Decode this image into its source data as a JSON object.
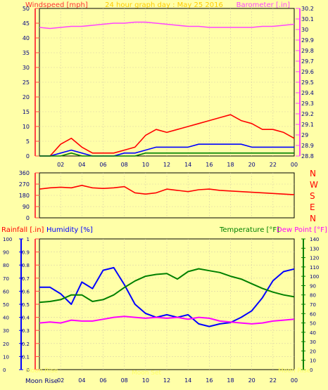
{
  "header": {
    "left_label": "Windspeed [mph]",
    "title": "24 hour graph day : May 25 2016",
    "right_label": "Barometer [.in]"
  },
  "x_ticks": [
    "02",
    "04",
    "06",
    "08",
    "10",
    "12",
    "14",
    "16",
    "18",
    "20",
    "22",
    "00"
  ],
  "colors": {
    "background": "#ffffa8",
    "grid": "#d9d0a8",
    "axis_left_top": "#ff4444",
    "axis_right_top": "#ff44ff",
    "wind": "#ff0000",
    "wind_avg": "#0000ff",
    "wind_low": "#008000",
    "barometer": "#ff44ff",
    "direction": "#ff0000",
    "humidity": "#0000ff",
    "temperature": "#008000",
    "dewpoint": "#ff00ff",
    "rain_label": "#ff0000",
    "moon": "#ffff66"
  },
  "chart_data": [
    {
      "type": "line",
      "name": "wind",
      "title": "24 hour graph day : May 25 2016",
      "ylabel": "Windspeed [mph]",
      "y2label": "Barometer [.in]",
      "ylim": [
        0,
        50
      ],
      "y2lim": [
        28.8,
        30.2
      ],
      "y_ticks": [
        0,
        5,
        10,
        15,
        20,
        25,
        30,
        35,
        40,
        45,
        50
      ],
      "y2_ticks": [
        "28.8",
        "28.9",
        "29",
        "29.1",
        "29.2",
        "29.3",
        "29.4",
        "29.5",
        "29.6",
        "29.7",
        "29.8",
        "29.9",
        "30",
        "30.1",
        "30.2"
      ],
      "x": [
        0,
        1,
        2,
        3,
        4,
        5,
        6,
        7,
        8,
        9,
        10,
        11,
        12,
        13,
        14,
        15,
        16,
        17,
        18,
        19,
        20,
        21,
        22,
        23,
        24
      ],
      "series": [
        {
          "values_gust": [
            0,
            0,
            4,
            6,
            3,
            1,
            1,
            1,
            2,
            3,
            7,
            9,
            8,
            9,
            10,
            11,
            12,
            13,
            14,
            12,
            11,
            9,
            9,
            8,
            6
          ]
        },
        {
          "values_avg": [
            0,
            0,
            1,
            2,
            1,
            0,
            0,
            0,
            1,
            1,
            2,
            3,
            3,
            3,
            3,
            4,
            4,
            4,
            4,
            4,
            3,
            3,
            3,
            3,
            3
          ]
        },
        {
          "values_low": [
            0,
            0,
            0,
            1,
            0,
            0,
            0,
            0,
            0,
            0,
            1,
            1,
            1,
            1,
            1,
            1,
            1,
            1,
            1,
            1,
            1,
            1,
            1,
            1,
            1
          ]
        },
        {
          "barometer": [
            30.02,
            30.01,
            30.02,
            30.03,
            30.03,
            30.04,
            30.05,
            30.06,
            30.06,
            30.07,
            30.07,
            30.06,
            30.05,
            30.04,
            30.03,
            30.03,
            30.02,
            30.02,
            30.02,
            30.02,
            30.02,
            30.03,
            30.03,
            30.04,
            30.05
          ]
        }
      ]
    },
    {
      "type": "line",
      "name": "direction",
      "ylim": [
        0,
        360
      ],
      "y_ticks": [
        0,
        90,
        180,
        270,
        360
      ],
      "y2_labels": [
        "N",
        "W",
        "S",
        "E",
        "N"
      ],
      "x": [
        0,
        1,
        2,
        3,
        4,
        5,
        6,
        7,
        8,
        9,
        10,
        11,
        12,
        13,
        14,
        15,
        16,
        17,
        18,
        19,
        20,
        21,
        22,
        23,
        24
      ],
      "values": [
        230,
        240,
        245,
        240,
        260,
        240,
        235,
        240,
        250,
        200,
        190,
        200,
        230,
        220,
        210,
        225,
        230,
        220,
        215,
        210,
        205,
        200,
        195,
        190,
        185
      ]
    },
    {
      "type": "line",
      "name": "weather",
      "ylabels": [
        "Rainfall [.in]",
        "Humidity [%]",
        "Temperature [°F]",
        "Dew Point [°F]"
      ],
      "rain_lim": [
        0,
        1
      ],
      "rain_ticks": [
        "0",
        "0.1",
        "0.2",
        "0.3",
        "0.4",
        "0.5",
        "0.6",
        "0.7",
        "0.8",
        "0.9",
        "1"
      ],
      "hum_lim": [
        0,
        100
      ],
      "hum_ticks": [
        0,
        10,
        20,
        30,
        40,
        50,
        60,
        70,
        80,
        90,
        100
      ],
      "temp_lim": [
        0,
        140
      ],
      "temp_ticks": [
        0,
        10,
        20,
        30,
        40,
        50,
        60,
        70,
        80,
        90,
        100,
        110,
        120,
        130,
        140
      ],
      "x": [
        0,
        1,
        2,
        3,
        4,
        5,
        6,
        7,
        8,
        9,
        10,
        11,
        12,
        13,
        14,
        15,
        16,
        17,
        18,
        19,
        20,
        21,
        22,
        23,
        24
      ],
      "humidity": [
        63,
        63,
        58,
        50,
        67,
        62,
        76,
        78,
        65,
        50,
        43,
        40,
        42,
        40,
        42,
        35,
        33,
        35,
        36,
        40,
        45,
        55,
        68,
        75,
        77
      ],
      "temperature": [
        72,
        73,
        75,
        80,
        80,
        73,
        75,
        80,
        88,
        95,
        100,
        102,
        103,
        97,
        105,
        108,
        106,
        104,
        100,
        97,
        92,
        87,
        83,
        80,
        78
      ],
      "dewpoint": [
        50,
        51,
        50,
        53,
        52,
        52,
        54,
        56,
        57,
        56,
        55,
        56,
        55,
        56,
        54,
        56,
        55,
        52,
        51,
        50,
        49,
        50,
        52,
        53,
        54
      ],
      "moon_labels": [
        "Moon Rise",
        "Moon Set",
        "Moon Rise"
      ]
    }
  ]
}
